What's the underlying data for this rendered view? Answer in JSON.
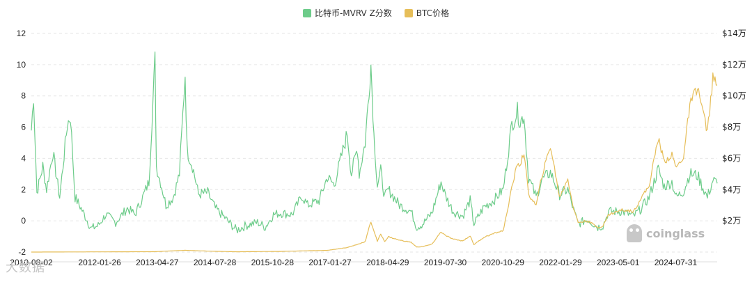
{
  "chart_data": {
    "type": "line",
    "legend": [
      {
        "name": "比特币-MVRV Z分数",
        "color": "#6dcc8a"
      },
      {
        "name": "BTC价格",
        "color": "#e6be59"
      }
    ],
    "legend_position": "top-center",
    "grid": true,
    "x_tick_labels": [
      "2010-08-02",
      "2012-01-26",
      "2013-04-27",
      "2014-07-28",
      "2015-10-28",
      "2017-01-27",
      "2018-04-29",
      "2019-07-30",
      "2020-10-29",
      "2022-01-29",
      "2023-05-01",
      "2024-07-31"
    ],
    "x_range": [
      "2010-08-02",
      "2025-06-25"
    ],
    "y_left": {
      "ticks": [
        -2,
        0,
        2,
        4,
        6,
        8,
        10,
        12
      ],
      "tick_labels": [
        "-2",
        "0",
        "2",
        "4",
        "6",
        "8",
        "10",
        "12"
      ],
      "range": [
        -2,
        12
      ]
    },
    "y_right": {
      "tick_labels": [
        "$2万",
        "$4万",
        "$6万",
        "$8万",
        "$10万",
        "$12万",
        "$14万"
      ],
      "ticks": [
        20000,
        40000,
        60000,
        80000,
        100000,
        120000,
        140000
      ],
      "range": [
        0,
        140000
      ]
    },
    "series": [
      {
        "name": "比特币-MVRV Z分数",
        "axis": "left",
        "color": "#6dcc8a",
        "points": [
          [
            "2010-08-02",
            5.8
          ],
          [
            "2010-08-20",
            8.0
          ],
          [
            "2010-09-15",
            1.8
          ],
          [
            "2010-11-01",
            3.5
          ],
          [
            "2010-12-01",
            2.0
          ],
          [
            "2011-01-20",
            4.4
          ],
          [
            "2011-03-15",
            1.5
          ],
          [
            "2011-05-15",
            6.2
          ],
          [
            "2011-06-08",
            6.7
          ],
          [
            "2011-07-15",
            1.5
          ],
          [
            "2011-09-01",
            0.8
          ],
          [
            "2011-11-20",
            -0.5
          ],
          [
            "2012-01-15",
            -0.3
          ],
          [
            "2012-03-15",
            0.4
          ],
          [
            "2012-06-01",
            -0.1
          ],
          [
            "2012-09-01",
            0.8
          ],
          [
            "2012-11-01",
            0.4
          ],
          [
            "2013-01-01",
            1.5
          ],
          [
            "2013-02-20",
            2.5
          ],
          [
            "2013-04-09",
            10.3
          ],
          [
            "2013-04-20",
            3.5
          ],
          [
            "2013-06-01",
            2.2
          ],
          [
            "2013-07-05",
            1.0
          ],
          [
            "2013-09-01",
            1.5
          ],
          [
            "2013-10-20",
            3.0
          ],
          [
            "2013-12-04",
            9.4
          ],
          [
            "2013-12-20",
            4.5
          ],
          [
            "2014-02-01",
            3.5
          ],
          [
            "2014-03-20",
            1.7
          ],
          [
            "2014-06-01",
            1.8
          ],
          [
            "2014-08-01",
            0.8
          ],
          [
            "2014-10-15",
            0.2
          ],
          [
            "2015-01-15",
            -0.6
          ],
          [
            "2015-04-01",
            -0.3
          ],
          [
            "2015-07-01",
            -0.1
          ],
          [
            "2015-09-01",
            -0.4
          ],
          [
            "2015-11-05",
            0.4
          ],
          [
            "2016-01-01",
            0.5
          ],
          [
            "2016-04-01",
            0.4
          ],
          [
            "2016-06-18",
            1.6
          ],
          [
            "2016-08-01",
            1.0
          ],
          [
            "2016-11-01",
            1.3
          ],
          [
            "2017-01-05",
            2.8
          ],
          [
            "2017-03-01",
            2.3
          ],
          [
            "2017-06-12",
            5.6
          ],
          [
            "2017-07-15",
            3.0
          ],
          [
            "2017-09-01",
            4.7
          ],
          [
            "2017-09-15",
            3.0
          ],
          [
            "2017-11-01",
            5.0
          ],
          [
            "2017-12-17",
            10.0
          ],
          [
            "2018-01-10",
            5.5
          ],
          [
            "2018-02-06",
            2.3
          ],
          [
            "2018-03-05",
            3.2
          ],
          [
            "2018-04-05",
            1.5
          ],
          [
            "2018-05-05",
            2.0
          ],
          [
            "2018-08-01",
            1.0
          ],
          [
            "2018-11-01",
            0.6
          ],
          [
            "2018-12-15",
            -0.4
          ],
          [
            "2019-02-01",
            -0.2
          ],
          [
            "2019-04-15",
            0.5
          ],
          [
            "2019-06-26",
            2.5
          ],
          [
            "2019-08-01",
            1.6
          ],
          [
            "2019-10-01",
            0.6
          ],
          [
            "2019-12-15",
            0.3
          ],
          [
            "2020-02-12",
            1.3
          ],
          [
            "2020-03-13",
            -0.2
          ],
          [
            "2020-06-01",
            0.9
          ],
          [
            "2020-08-15",
            1.3
          ],
          [
            "2020-11-01",
            2.0
          ],
          [
            "2021-01-08",
            6.2
          ],
          [
            "2021-02-21",
            7.0
          ],
          [
            "2021-03-15",
            6.3
          ],
          [
            "2021-04-14",
            6.8
          ],
          [
            "2021-05-20",
            2.8
          ],
          [
            "2021-07-20",
            1.5
          ],
          [
            "2021-09-01",
            2.6
          ],
          [
            "2021-11-10",
            3.1
          ],
          [
            "2022-01-22",
            1.7
          ],
          [
            "2022-03-28",
            2.0
          ],
          [
            "2022-05-12",
            0.7
          ],
          [
            "2022-06-18",
            -0.2
          ],
          [
            "2022-09-01",
            0.1
          ],
          [
            "2022-11-21",
            -0.4
          ],
          [
            "2023-01-01",
            -0.3
          ],
          [
            "2023-02-15",
            0.6
          ],
          [
            "2023-06-01",
            0.6
          ],
          [
            "2023-09-01",
            0.3
          ],
          [
            "2023-11-01",
            0.8
          ],
          [
            "2024-01-01",
            1.5
          ],
          [
            "2024-03-14",
            3.3
          ],
          [
            "2024-05-01",
            2.2
          ],
          [
            "2024-07-01",
            2.5
          ],
          [
            "2024-08-05",
            1.5
          ],
          [
            "2024-10-01",
            1.9
          ],
          [
            "2024-11-20",
            3.0
          ],
          [
            "2025-01-20",
            2.9
          ],
          [
            "2025-04-08",
            1.5
          ],
          [
            "2025-05-22",
            2.6
          ],
          [
            "2025-06-25",
            2.4
          ]
        ]
      },
      {
        "name": "BTC价格",
        "axis": "right",
        "color": "#e6be59",
        "points": [
          [
            "2010-08-02",
            0
          ],
          [
            "2013-04-09",
            250
          ],
          [
            "2013-12-04",
            1150
          ],
          [
            "2014-06-01",
            600
          ],
          [
            "2015-01-15",
            180
          ],
          [
            "2016-01-01",
            430
          ],
          [
            "2017-01-05",
            1100
          ],
          [
            "2017-06-12",
            2900
          ],
          [
            "2017-09-01",
            4900
          ],
          [
            "2017-11-01",
            6700
          ],
          [
            "2017-12-17",
            19500
          ],
          [
            "2018-02-06",
            6900
          ],
          [
            "2018-03-05",
            11500
          ],
          [
            "2018-04-05",
            6800
          ],
          [
            "2018-05-05",
            9800
          ],
          [
            "2018-08-01",
            7600
          ],
          [
            "2018-11-01",
            6300
          ],
          [
            "2018-12-15",
            3200
          ],
          [
            "2019-02-01",
            3500
          ],
          [
            "2019-04-15",
            5000
          ],
          [
            "2019-06-26",
            13000
          ],
          [
            "2019-08-01",
            10500
          ],
          [
            "2019-10-01",
            8300
          ],
          [
            "2019-12-15",
            7100
          ],
          [
            "2020-02-12",
            10400
          ],
          [
            "2020-03-13",
            4800
          ],
          [
            "2020-06-01",
            9500
          ],
          [
            "2020-08-15",
            11800
          ],
          [
            "2020-11-01",
            13800
          ],
          [
            "2021-01-08",
            41000
          ],
          [
            "2021-02-21",
            57000
          ],
          [
            "2021-03-15",
            56000
          ],
          [
            "2021-04-14",
            64000
          ],
          [
            "2021-05-20",
            37000
          ],
          [
            "2021-07-20",
            29800
          ],
          [
            "2021-09-01",
            48000
          ],
          [
            "2021-11-10",
            68000
          ],
          [
            "2022-01-22",
            35000
          ],
          [
            "2022-03-28",
            47000
          ],
          [
            "2022-05-12",
            28000
          ],
          [
            "2022-06-18",
            19000
          ],
          [
            "2022-09-01",
            20000
          ],
          [
            "2022-11-21",
            15800
          ],
          [
            "2023-01-01",
            16600
          ],
          [
            "2023-02-15",
            24000
          ],
          [
            "2023-06-01",
            27000
          ],
          [
            "2023-09-01",
            26000
          ],
          [
            "2023-11-01",
            35000
          ],
          [
            "2024-01-01",
            42000
          ],
          [
            "2024-03-14",
            73000
          ],
          [
            "2024-05-01",
            58000
          ],
          [
            "2024-07-01",
            62000
          ],
          [
            "2024-08-05",
            54000
          ],
          [
            "2024-10-01",
            61000
          ],
          [
            "2024-11-20",
            94000
          ],
          [
            "2025-01-20",
            106000
          ],
          [
            "2025-04-08",
            77000
          ],
          [
            "2025-05-22",
            111000
          ],
          [
            "2025-06-25",
            107000
          ]
        ]
      }
    ]
  },
  "watermark": {
    "text": "coinglass",
    "icon": "coinglass-logo-icon"
  },
  "source_caption": "大数据"
}
